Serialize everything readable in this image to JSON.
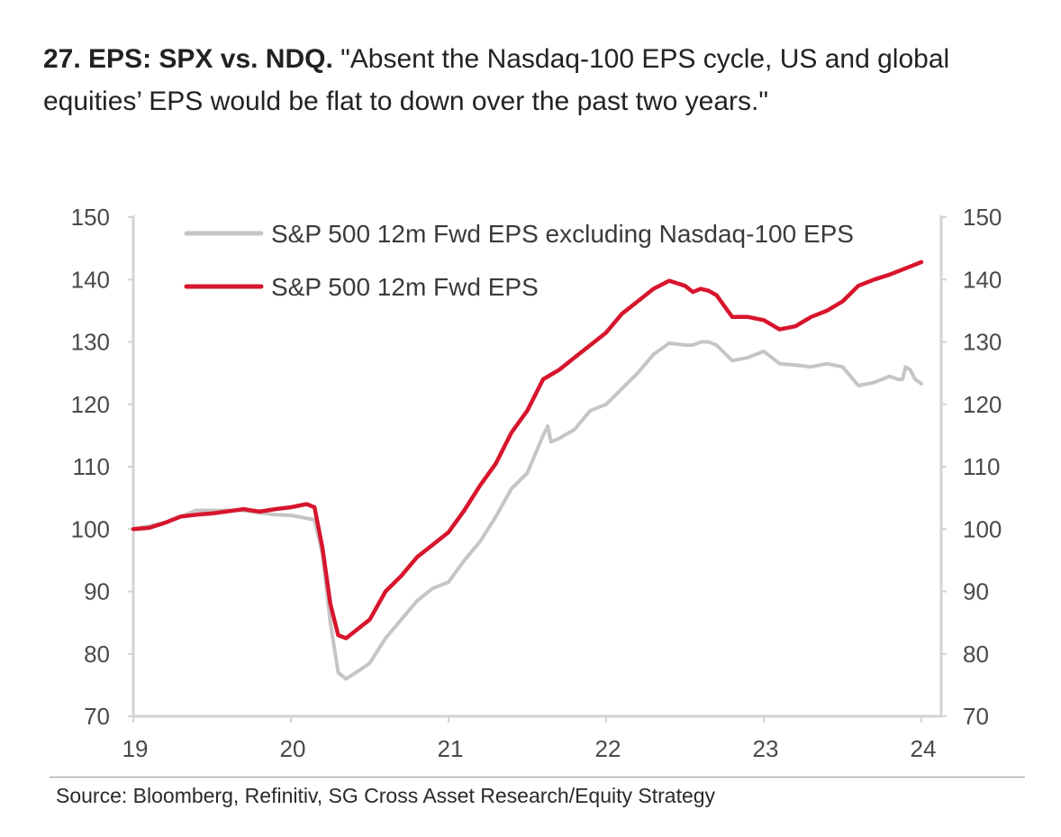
{
  "header": {
    "label": "27. EPS: SPX vs. NDQ.",
    "quote": "\"Absent the Nasdaq-100 EPS cycle, US and global equities’ EPS would be flat to down over the past two years.\""
  },
  "source": "Source: Bloomberg, Refinitiv, SG Cross Asset Research/Equity Strategy",
  "chart_data": {
    "type": "line",
    "title": "",
    "xlabel": "",
    "ylabel": "",
    "xlim": [
      19,
      24
    ],
    "ylim": [
      70,
      150
    ],
    "x_ticks": [
      "19",
      "20",
      "21",
      "22",
      "23",
      "24"
    ],
    "y_ticks_left": [
      "150",
      "140",
      "130",
      "120",
      "110",
      "100",
      "90",
      "80",
      "70"
    ],
    "y_ticks_right": [
      "150",
      "140",
      "130",
      "120",
      "110",
      "100",
      "90",
      "80",
      "70"
    ],
    "grid": false,
    "legend_position": "top-left",
    "series": [
      {
        "name": "S&P 500 12m Fwd EPS excluding Nasdaq-100 EPS",
        "color": "#c8c4c5",
        "x": [
          19.0,
          19.1,
          19.2,
          19.3,
          19.4,
          19.5,
          19.7,
          19.8,
          19.9,
          20.0,
          20.15,
          20.2,
          20.25,
          20.3,
          20.35,
          20.4,
          20.5,
          20.6,
          20.7,
          20.8,
          20.9,
          21.0,
          21.1,
          21.2,
          21.3,
          21.4,
          21.5,
          21.6,
          21.63,
          21.65,
          21.7,
          21.8,
          21.9,
          22.0,
          22.1,
          22.2,
          22.3,
          22.4,
          22.5,
          22.55,
          22.6,
          22.65,
          22.7,
          22.8,
          22.9,
          23.0,
          23.1,
          23.2,
          23.3,
          23.4,
          23.5,
          23.55,
          23.6,
          23.7,
          23.8,
          23.85,
          23.88,
          23.9,
          23.93,
          23.96,
          24.0
        ],
        "values": [
          100,
          100.5,
          101,
          102,
          103,
          103,
          103,
          102.6,
          102.3,
          102.2,
          101.5,
          96,
          85,
          77,
          76,
          76.8,
          78.5,
          82.5,
          85.5,
          88.5,
          90.5,
          91.5,
          95,
          98,
          102,
          106.5,
          109,
          115,
          116.5,
          114,
          114.5,
          116,
          119,
          120,
          122.5,
          125,
          128,
          129.8,
          129.5,
          129.5,
          130,
          130,
          129.5,
          127,
          127.5,
          128.5,
          126.5,
          126.3,
          126,
          126.5,
          126,
          124.5,
          123,
          123.5,
          124.5,
          124,
          124,
          126,
          125.5,
          124,
          123.3
        ]
      },
      {
        "name": "S&P 500 12m Fwd EPS",
        "color": "#d7152c",
        "x": [
          19.0,
          19.1,
          19.2,
          19.3,
          19.4,
          19.5,
          19.7,
          19.8,
          19.9,
          20.0,
          20.1,
          20.15,
          20.2,
          20.25,
          20.3,
          20.35,
          20.4,
          20.5,
          20.6,
          20.7,
          20.8,
          20.9,
          21.0,
          21.1,
          21.2,
          21.3,
          21.4,
          21.5,
          21.6,
          21.7,
          21.8,
          21.9,
          22.0,
          22.1,
          22.2,
          22.3,
          22.4,
          22.5,
          22.55,
          22.6,
          22.65,
          22.7,
          22.8,
          22.9,
          23.0,
          23.1,
          23.2,
          23.3,
          23.4,
          23.5,
          23.6,
          23.7,
          23.8,
          23.9,
          24.0
        ],
        "values": [
          100,
          100.2,
          101,
          102,
          102.3,
          102.5,
          103.2,
          102.8,
          103.2,
          103.5,
          104,
          103.5,
          97,
          88,
          83,
          82.5,
          83.5,
          85.5,
          90,
          92.5,
          95.5,
          97.5,
          99.5,
          103,
          107,
          110.5,
          115.5,
          119,
          124,
          125.5,
          127.5,
          129.5,
          131.5,
          134.5,
          136.5,
          138.5,
          139.8,
          139,
          138,
          138.5,
          138.2,
          137.5,
          134,
          134,
          133.5,
          132,
          132.5,
          134,
          135,
          136.5,
          139,
          140,
          140.8,
          141.8,
          142.8
        ]
      }
    ]
  }
}
